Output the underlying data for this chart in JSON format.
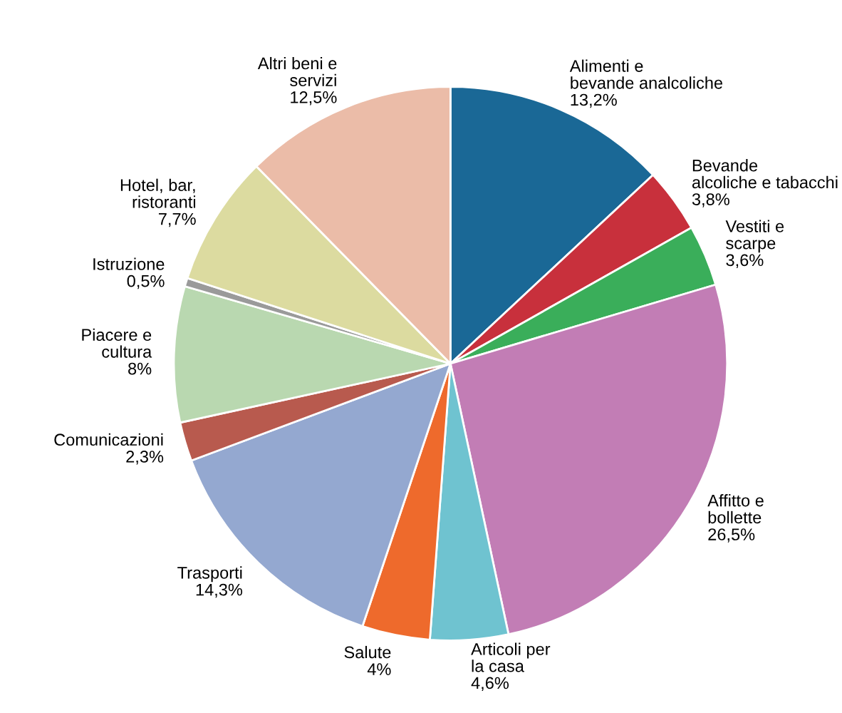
{
  "chart_data": {
    "type": "pie",
    "categories": [
      "Alimenti e bevande analcoliche",
      "Bevande alcoliche e tabacchi",
      "Vestiti e scarpe",
      "Affitto e bollette",
      "Articoli per la casa",
      "Salute",
      "Trasporti",
      "Comunicazioni",
      "Piacere e cultura",
      "Istruzione",
      "Hotel, bar, ristoranti",
      "Altri beni e servizi"
    ],
    "values": [
      13.2,
      3.8,
      3.6,
      26.5,
      4.6,
      4,
      14.3,
      2.3,
      8,
      0.5,
      7.7,
      12.5
    ],
    "value_labels": [
      "13,2%",
      "3,8%",
      "3,6%",
      "26,5%",
      "4,6%",
      "4%",
      "14,3%",
      "2,3%",
      "8%",
      "0,5%",
      "7,7%",
      "12,5%"
    ],
    "colors": [
      "#1a6896",
      "#c8303c",
      "#3aae5a",
      "#c27db5",
      "#6fc3d0",
      "#ee6a2c",
      "#94a8d0",
      "#b85a4e",
      "#b9d8b0",
      "#9a9a9a",
      "#dcdba0",
      "#ebbca8"
    ]
  }
}
